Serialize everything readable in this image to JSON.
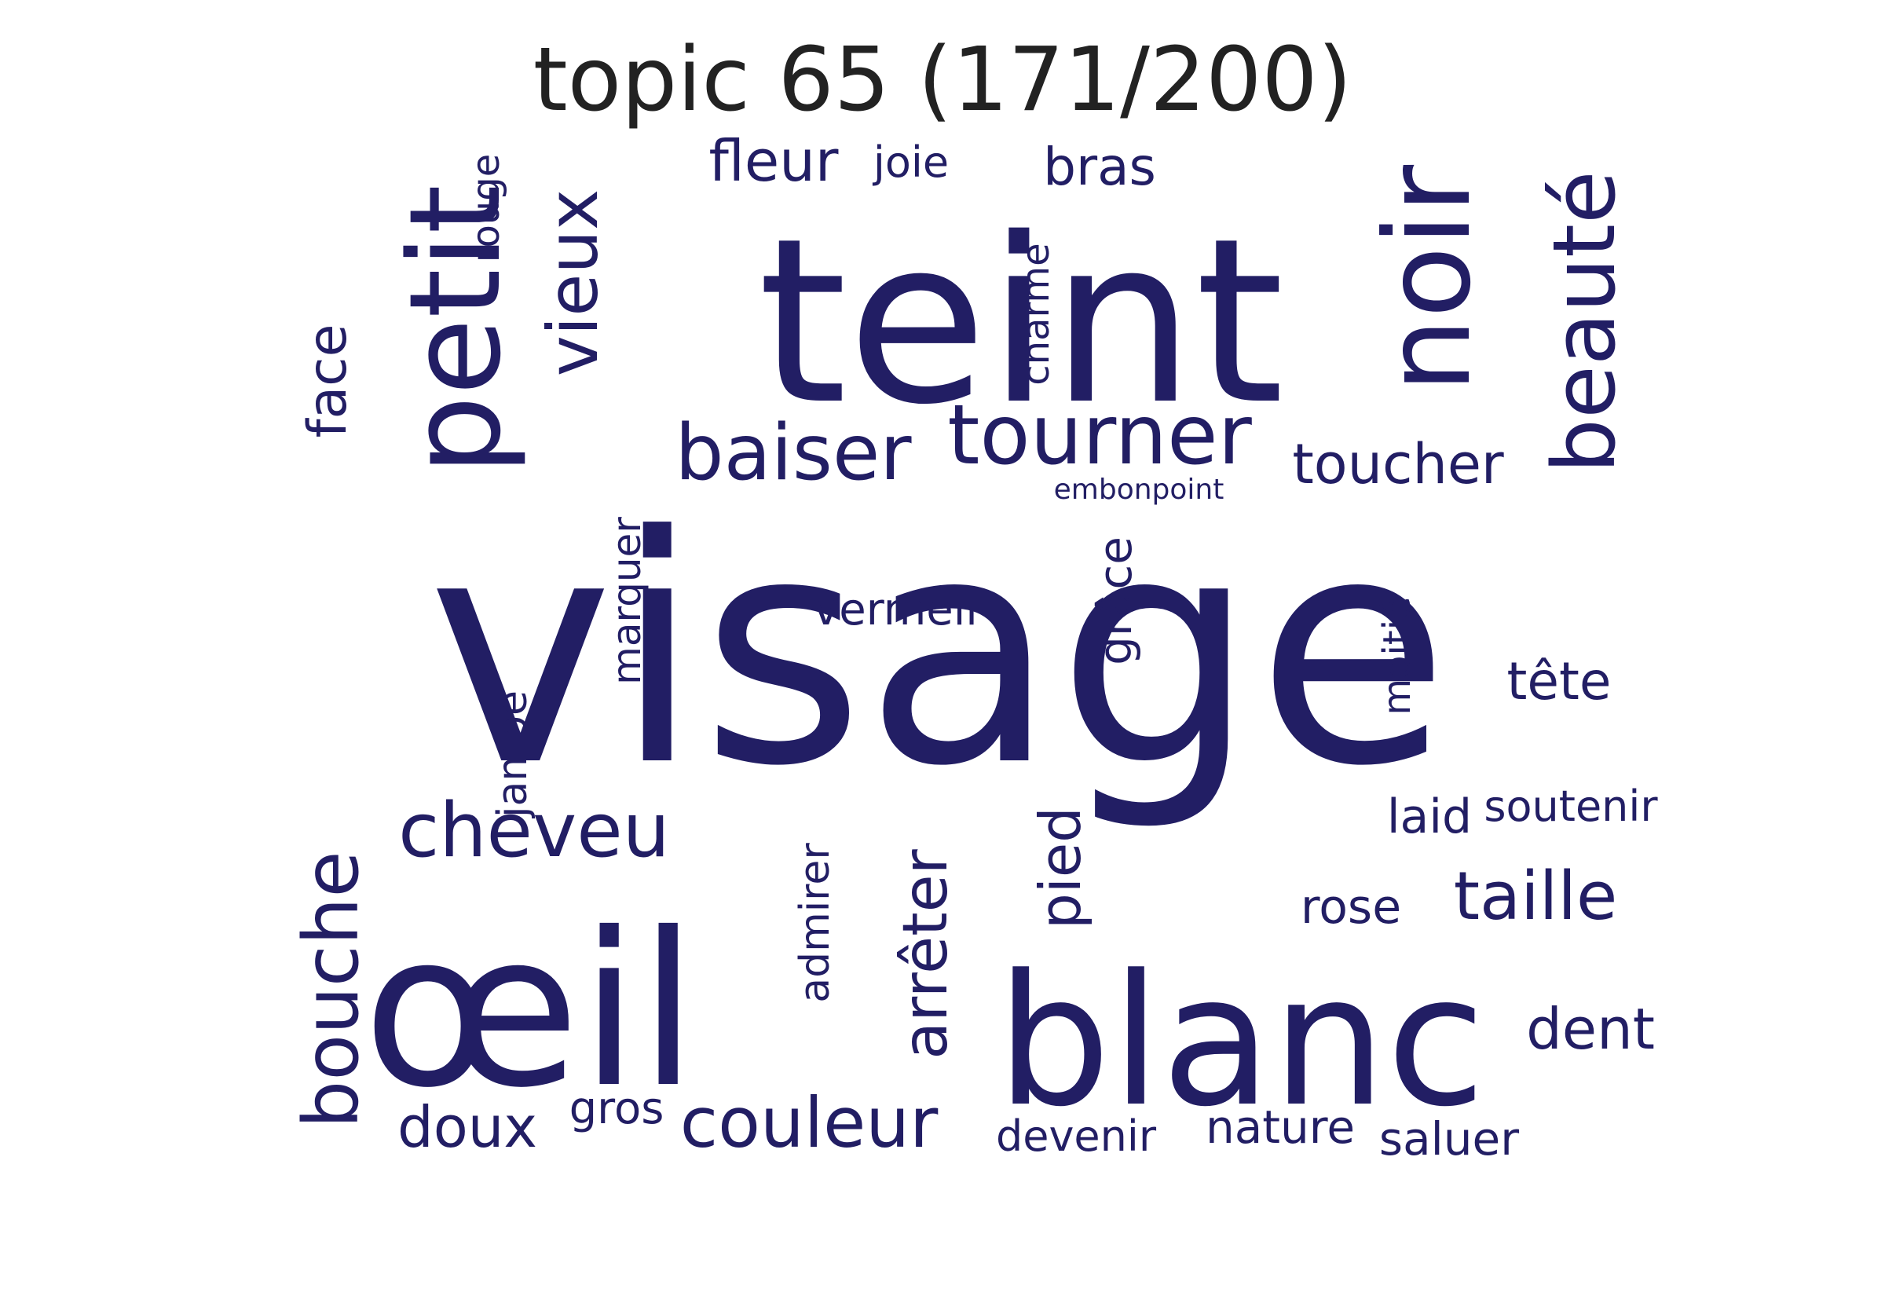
{
  "title": "topic 65 (171/200)",
  "colors": {
    "word": "#221e64",
    "title": "#222222",
    "background": "#ffffff"
  },
  "words": [
    {
      "text": "visage",
      "weight": 100,
      "orientation": "horizontal"
    },
    {
      "text": "teint",
      "weight": 65,
      "orientation": "horizontal"
    },
    {
      "text": "œil",
      "weight": 60,
      "orientation": "horizontal"
    },
    {
      "text": "blanc",
      "weight": 52,
      "orientation": "horizontal"
    },
    {
      "text": "petit",
      "weight": 38,
      "orientation": "vertical"
    },
    {
      "text": "noir",
      "weight": 36,
      "orientation": "vertical"
    },
    {
      "text": "beauté",
      "weight": 28,
      "orientation": "vertical"
    },
    {
      "text": "tourner",
      "weight": 22,
      "orientation": "horizontal"
    },
    {
      "text": "baiser",
      "weight": 20,
      "orientation": "horizontal"
    },
    {
      "text": "bouche",
      "weight": 20,
      "orientation": "vertical"
    },
    {
      "text": "cheveu",
      "weight": 20,
      "orientation": "horizontal"
    },
    {
      "text": "vieux",
      "weight": 18,
      "orientation": "vertical"
    },
    {
      "text": "couleur",
      "weight": 18,
      "orientation": "horizontal"
    },
    {
      "text": "arrêter",
      "weight": 17,
      "orientation": "vertical"
    },
    {
      "text": "taille",
      "weight": 17,
      "orientation": "horizontal"
    },
    {
      "text": "toucher",
      "weight": 15,
      "orientation": "horizontal"
    },
    {
      "text": "pied",
      "weight": 15,
      "orientation": "vertical"
    },
    {
      "text": "face",
      "weight": 14,
      "orientation": "vertical"
    },
    {
      "text": "doux",
      "weight": 14,
      "orientation": "horizontal"
    },
    {
      "text": "fleur",
      "weight": 14,
      "orientation": "horizontal"
    },
    {
      "text": "dent",
      "weight": 14,
      "orientation": "horizontal"
    },
    {
      "text": "bras",
      "weight": 13,
      "orientation": "horizontal"
    },
    {
      "text": "tête",
      "weight": 13,
      "orientation": "horizontal"
    },
    {
      "text": "rose",
      "weight": 12,
      "orientation": "horizontal"
    },
    {
      "text": "grâce",
      "weight": 12,
      "orientation": "vertical"
    },
    {
      "text": "jambe",
      "weight": 11,
      "orientation": "vertical"
    },
    {
      "text": "marquer",
      "weight": 11,
      "orientation": "vertical"
    },
    {
      "text": "admirer",
      "weight": 11,
      "orientation": "vertical"
    },
    {
      "text": "vermeil",
      "weight": 11,
      "orientation": "horizontal"
    },
    {
      "text": "nature",
      "weight": 11,
      "orientation": "horizontal"
    },
    {
      "text": "saluer",
      "weight": 11,
      "orientation": "horizontal"
    },
    {
      "text": "laid",
      "weight": 11,
      "orientation": "horizontal"
    },
    {
      "text": "moitié",
      "weight": 10,
      "orientation": "vertical"
    },
    {
      "text": "gros",
      "weight": 10,
      "orientation": "horizontal"
    },
    {
      "text": "joie",
      "weight": 10,
      "orientation": "horizontal"
    },
    {
      "text": "charme",
      "weight": 10,
      "orientation": "vertical"
    },
    {
      "text": "rouge",
      "weight": 10,
      "orientation": "vertical"
    },
    {
      "text": "devenir",
      "weight": 10,
      "orientation": "horizontal"
    },
    {
      "text": "soutenir",
      "weight": 10,
      "orientation": "horizontal"
    },
    {
      "text": "embonpoint",
      "weight": 7,
      "orientation": "horizontal"
    }
  ]
}
